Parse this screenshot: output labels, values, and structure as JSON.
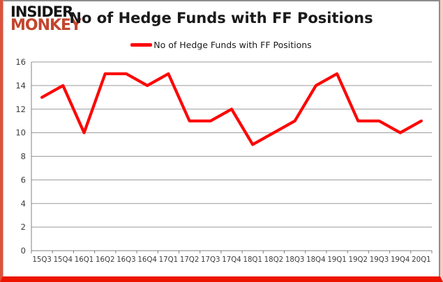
{
  "logo": {
    "line1": "INSIDER",
    "line2": "MONKEY"
  },
  "header": {
    "title": "No of Hedge Funds with FF Positions"
  },
  "legend": {
    "label": "No of Hedge Funds with FF Positions"
  },
  "colors": {
    "series_line": "#fe0505",
    "logo_top": "#151515",
    "logo_accent": "#c2462e",
    "gridline": "#9a9a9a",
    "axis": "#808080",
    "tick_text": "#3b3b3b",
    "outer_border_left": "#e0503a",
    "outer_border_bottom": "#ec1400",
    "outer_border_right": "#ffc9c5",
    "chart_frame": "#8c8c8c"
  },
  "chart_data": {
    "type": "line",
    "title": "No of Hedge Funds with FF Positions",
    "categories": [
      "15Q3",
      "15Q4",
      "16Q1",
      "16Q2",
      "16Q3",
      "16Q4",
      "17Q1",
      "17Q2",
      "17Q3",
      "17Q4",
      "18Q1",
      "18Q2",
      "18Q3",
      "18Q4",
      "19Q1",
      "19Q2",
      "19Q3",
      "19Q4",
      "20Q1"
    ],
    "series": [
      {
        "name": "No of Hedge Funds with FF Positions",
        "values": [
          13,
          14,
          10,
          15,
          15,
          14,
          15,
          11,
          11,
          12,
          9,
          10,
          11,
          14,
          15,
          11,
          11,
          10,
          11
        ]
      }
    ],
    "xlabel": "",
    "ylabel": "",
    "ylim": [
      0,
      16
    ],
    "yticks": [
      0,
      2,
      4,
      6,
      8,
      10,
      12,
      14,
      16
    ],
    "grid": true,
    "legend_position": "top-center"
  }
}
